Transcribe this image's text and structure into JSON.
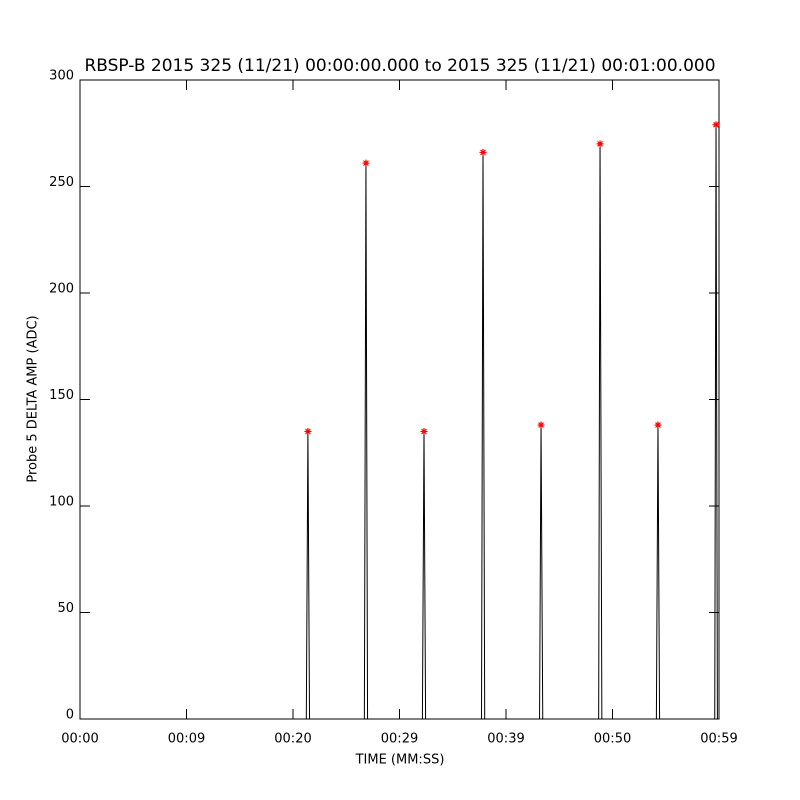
{
  "chart_data": {
    "type": "line",
    "title": "RBSP-B 2015 325 (11/21) 00:00:00.000 to 2015 325 (11/21) 00:01:00.000",
    "xlabel": "TIME (MM:SS)",
    "ylabel": "Probe 5 DELTA AMP (ADC)",
    "xlim": [
      0,
      60
    ],
    "xticks": [
      {
        "value": 0,
        "label": "00:00"
      },
      {
        "value": 10,
        "label": "00:09"
      },
      {
        "value": 20,
        "label": "00:20"
      },
      {
        "value": 30,
        "label": "00:29"
      },
      {
        "value": 40,
        "label": "00:39"
      },
      {
        "value": 50,
        "label": "00:50"
      },
      {
        "value": 60,
        "label": "00:59"
      }
    ],
    "ylim": [
      0,
      300
    ],
    "yticks": [
      0,
      50,
      100,
      150,
      200,
      250,
      300
    ],
    "series": [
      {
        "color": "#000000",
        "x": [
          0,
          21.25,
          21.4,
          21.55,
          26.7,
          26.85,
          27.0,
          32.15,
          32.3,
          32.45,
          37.7,
          37.84,
          38.0,
          43.15,
          43.29,
          43.45,
          48.7,
          48.83,
          49.0,
          54.12,
          54.27,
          54.42,
          59.6,
          59.72,
          59.85
        ],
        "values": [
          0,
          0,
          135,
          0,
          0,
          261,
          0,
          0,
          135,
          0,
          0,
          266,
          0,
          0,
          138,
          0,
          0,
          270,
          0,
          0,
          138,
          0,
          0,
          279,
          0
        ]
      },
      {
        "color": "#ff0000",
        "marker": "asterisk",
        "x": [
          21.4,
          26.85,
          32.3,
          37.84,
          43.29,
          48.83,
          54.27,
          59.72
        ],
        "values": [
          135,
          261,
          135,
          266,
          138,
          270,
          138,
          279
        ]
      }
    ]
  }
}
